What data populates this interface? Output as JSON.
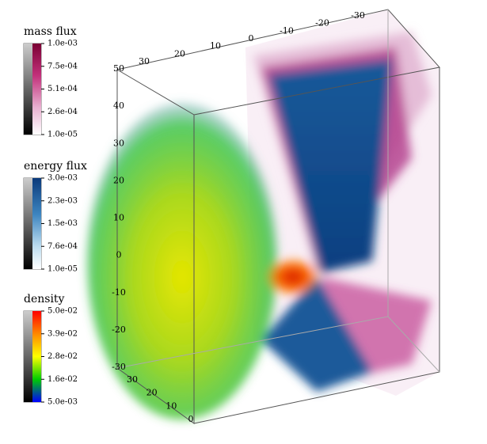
{
  "colorbars": [
    {
      "title": "mass flux",
      "ticks": [
        "1.0e-03",
        "7.5e-04",
        "5.1e-04",
        "2.6e-04",
        "1.0e-05"
      ]
    },
    {
      "title": "energy flux",
      "ticks": [
        "3.0e-03",
        "2.3e-03",
        "1.5e-03",
        "7.6e-04",
        "1.0e-05"
      ]
    },
    {
      "title": "density",
      "ticks": [
        "5.0e-02",
        "3.9e-02",
        "2.8e-02",
        "1.6e-02",
        "5.0e-03"
      ]
    }
  ],
  "axes": {
    "top": [
      30,
      20,
      10,
      0,
      -10,
      -20,
      -30
    ],
    "left": [
      50,
      40,
      30,
      20,
      10,
      0,
      -10,
      -20,
      -30
    ],
    "bottom": [
      30,
      20,
      10,
      0
    ]
  }
}
